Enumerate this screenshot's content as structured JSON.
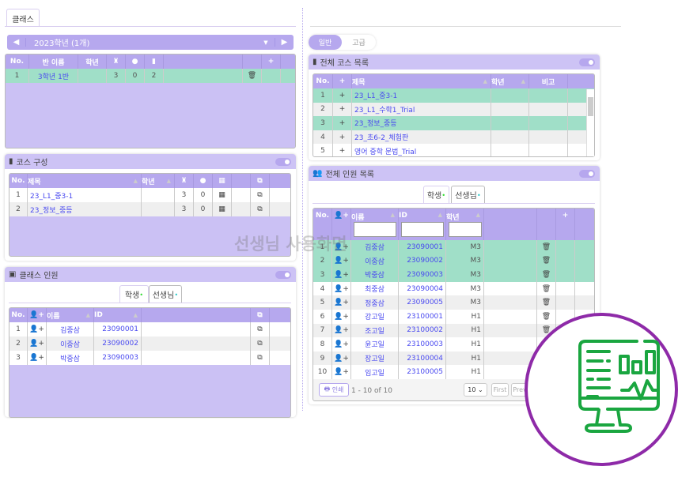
{
  "tab_main": "클래스",
  "year_selector": {
    "label": "2023학년 (1개)"
  },
  "class_table": {
    "headers": [
      "No.",
      "반 이름",
      "학년",
      "teacher-icon",
      "user-icon",
      "book-icon",
      "",
      "",
      "+",
      ""
    ],
    "rows": [
      {
        "no": "1",
        "name": "3학년 1반",
        "grade": "",
        "c1": "3",
        "c2": "0",
        "c3": "2"
      }
    ]
  },
  "course_panel": {
    "title": "코스 구성",
    "headers": [
      "No.",
      "제목",
      "학년",
      "teacher-icon",
      "user-icon",
      "calendar-icon",
      "",
      "external-link-icon",
      ""
    ],
    "rows": [
      {
        "no": "1",
        "title": "23_L1_중3-1",
        "grade": "",
        "c1": "3",
        "c2": "0"
      },
      {
        "no": "2",
        "title": "23_정보_중등",
        "grade": "",
        "c1": "3",
        "c2": "0"
      }
    ]
  },
  "class_member_panel": {
    "title": "클래스 인원",
    "tabs": [
      "학생",
      "선생님"
    ],
    "headers": [
      "No.",
      "user-plus-icon",
      "이름",
      "ID",
      "",
      "external-link-icon",
      ""
    ],
    "rows": [
      {
        "no": "1",
        "name": "김중삼",
        "id": "23090001"
      },
      {
        "no": "2",
        "name": "이중삼",
        "id": "23090002"
      },
      {
        "no": "3",
        "name": "박중삼",
        "id": "23090003"
      }
    ]
  },
  "mode_toggle": {
    "options": [
      "일반",
      "고급"
    ],
    "selected": "일반"
  },
  "all_courses_panel": {
    "title": "전체 코스 목록",
    "headers": [
      "No.",
      "+",
      "제목",
      "학년",
      "비고",
      ""
    ],
    "rows": [
      {
        "no": "1",
        "title": "23_L1_중3-1",
        "sel": true
      },
      {
        "no": "2",
        "title": "23_L1_수학1_Trial",
        "sel": false
      },
      {
        "no": "3",
        "title": "23_정보_중등",
        "sel": true
      },
      {
        "no": "4",
        "title": "23_초6-2_체험판",
        "sel": false
      },
      {
        "no": "5",
        "title": "영어 중학 문법_Trial",
        "sel": false
      }
    ]
  },
  "all_members_panel": {
    "title": "전체 인원 목록",
    "tabs": [
      "학생",
      "선생님"
    ],
    "headers": [
      "No.",
      "user-plus-icon",
      "이름",
      "ID",
      "학년",
      "",
      "",
      "+",
      ""
    ],
    "rows": [
      {
        "no": "1",
        "name": "김중삼",
        "id": "23090001",
        "grade": "M3",
        "sel": true
      },
      {
        "no": "2",
        "name": "이중삼",
        "id": "23090002",
        "grade": "M3",
        "sel": true
      },
      {
        "no": "3",
        "name": "박중삼",
        "id": "23090003",
        "grade": "M3",
        "sel": true
      },
      {
        "no": "4",
        "name": "최중삼",
        "id": "23090004",
        "grade": "M3",
        "sel": false
      },
      {
        "no": "5",
        "name": "정중삼",
        "id": "23090005",
        "grade": "M3",
        "sel": false
      },
      {
        "no": "6",
        "name": "강고일",
        "id": "23100001",
        "grade": "H1",
        "sel": false
      },
      {
        "no": "7",
        "name": "조고일",
        "id": "23100002",
        "grade": "H1",
        "sel": false
      },
      {
        "no": "8",
        "name": "윤고일",
        "id": "23100003",
        "grade": "H1",
        "sel": false
      },
      {
        "no": "9",
        "name": "장고일",
        "id": "23100004",
        "grade": "H1",
        "sel": false
      },
      {
        "no": "10",
        "name": "임고일",
        "id": "23100005",
        "grade": "H1",
        "sel": false
      }
    ],
    "footer": {
      "print": "인쇄",
      "range": "1 - 10 of 10",
      "page_size": "10",
      "first": "First",
      "prev": "Prev"
    }
  },
  "watermark": "선생님 사용화면",
  "colors": {
    "accent": "#b6a8ee",
    "selected_row": "#a0dfc8",
    "link": "#4a4af0",
    "badge_circle": "#8e2aa8",
    "badge_icon": "#1aa640"
  }
}
